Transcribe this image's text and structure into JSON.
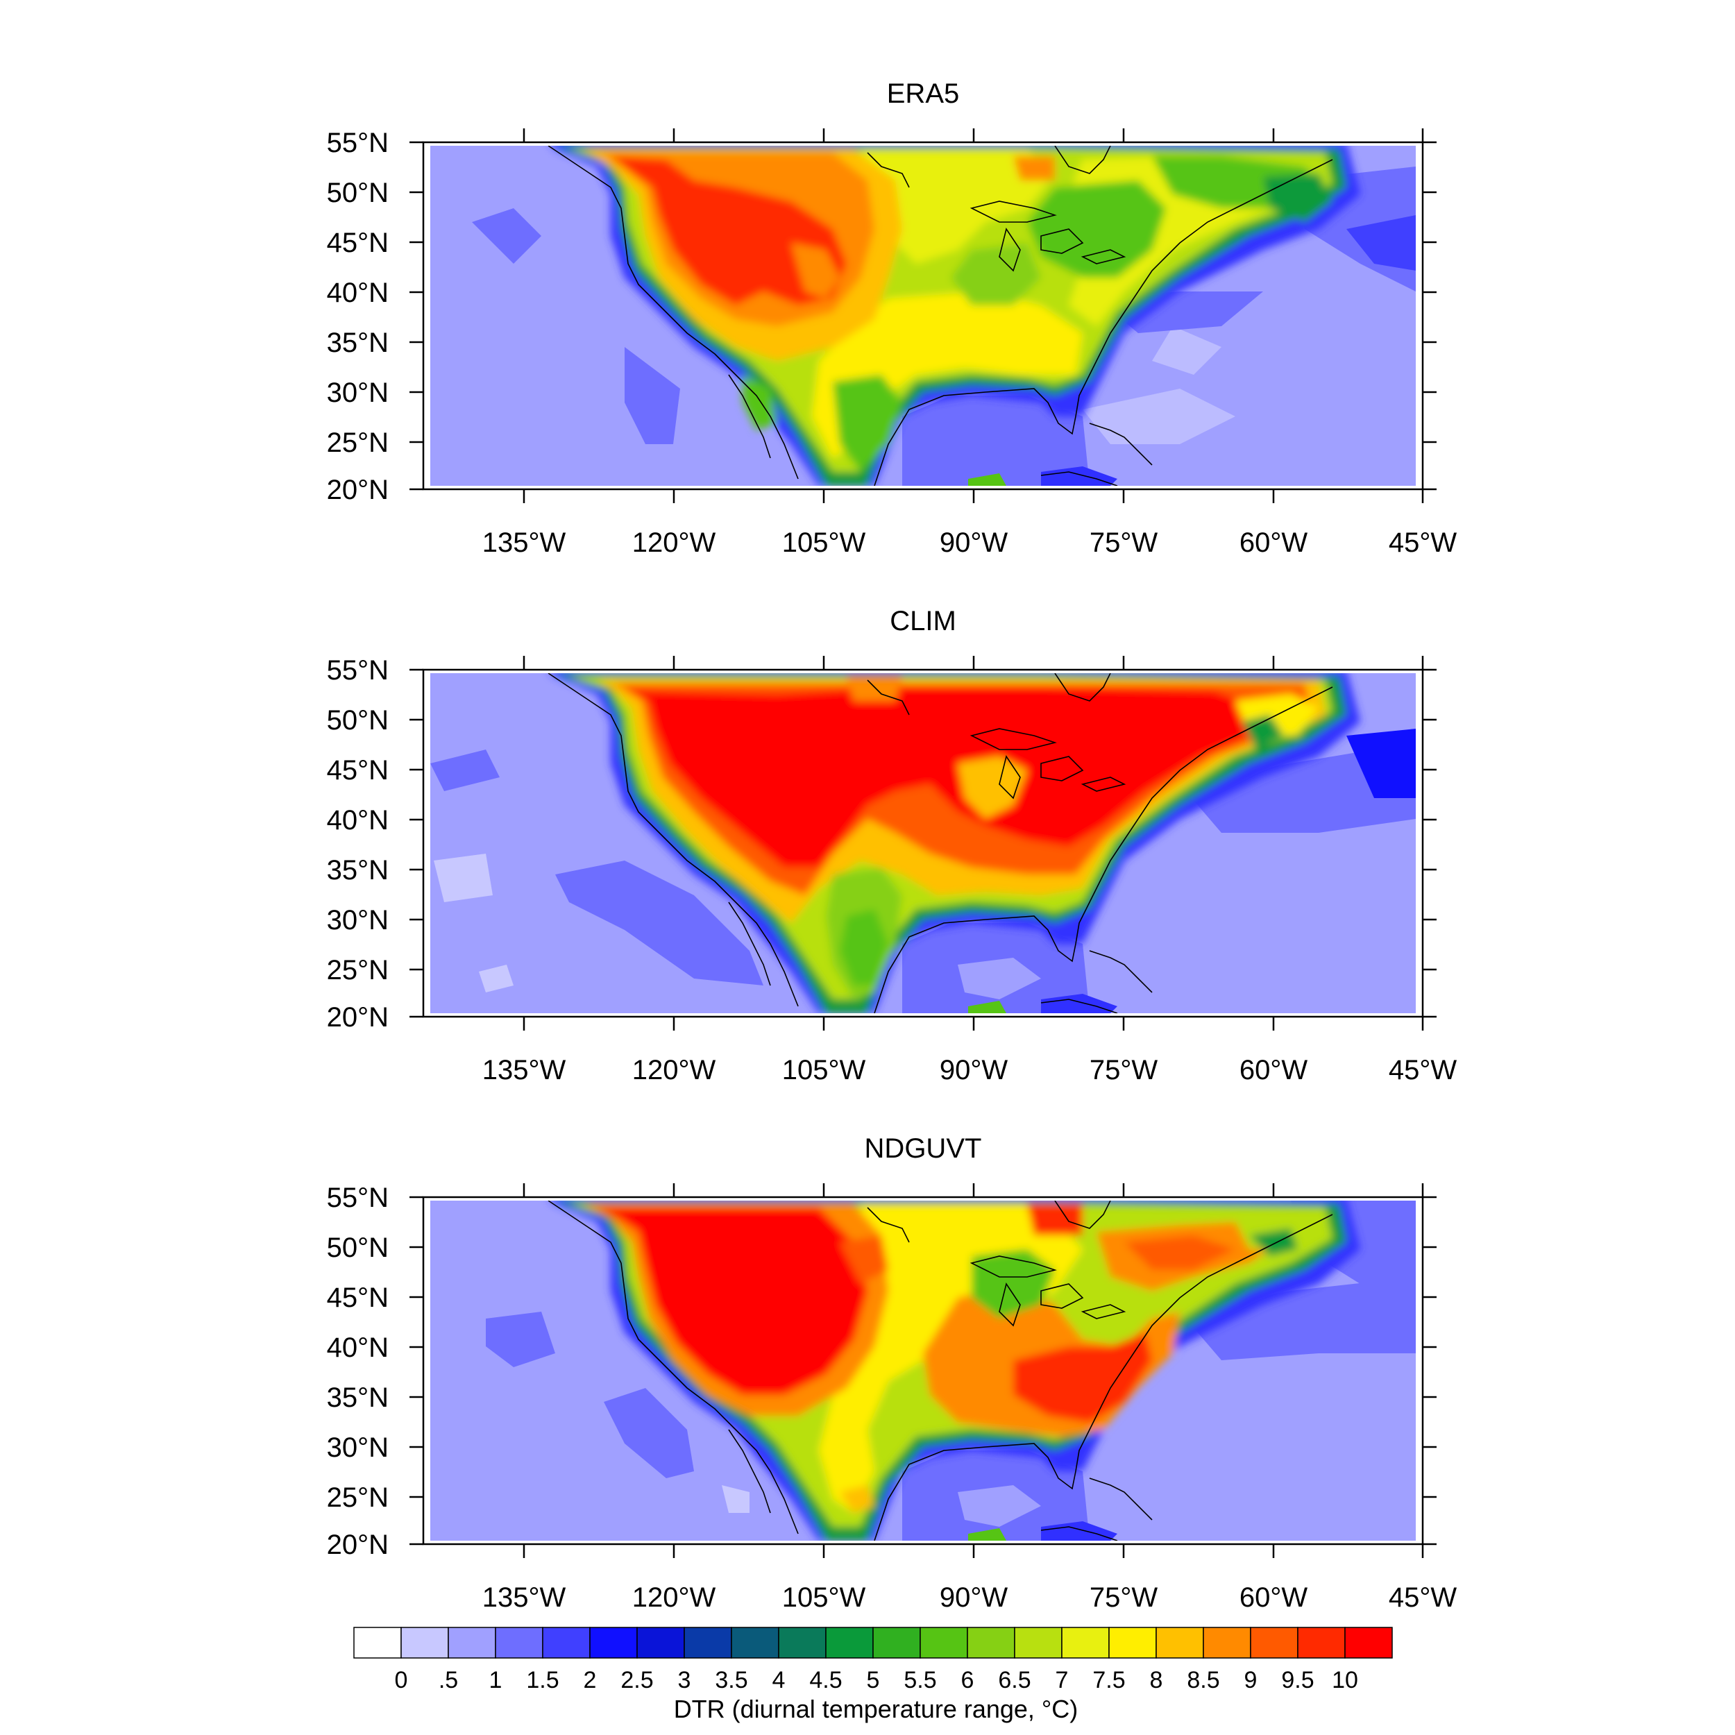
{
  "panels": [
    {
      "id": "era5",
      "title": "ERA5"
    },
    {
      "id": "clim",
      "title": "CLIM"
    },
    {
      "id": "ndguvt",
      "title": "NDGUVT"
    }
  ],
  "axes": {
    "lon_labels": [
      "135°W",
      "120°W",
      "105°W",
      "90°W",
      "75°W",
      "60°W",
      "45°W"
    ],
    "lat_labels": [
      "55°N",
      "50°N",
      "45°N",
      "40°N",
      "35°N",
      "30°N",
      "25°N",
      "20°N"
    ],
    "lon_range_deg": [
      -138.5,
      -44.5
    ],
    "lat_range_deg": [
      20,
      55
    ]
  },
  "colorbar": {
    "label": "DTR (diurnal temperature range, °C)",
    "tick_labels": [
      "0",
      ".5",
      "1",
      "1.5",
      "2",
      "2.5",
      "3",
      "3.5",
      "4",
      "4.5",
      "5",
      "5.5",
      "6",
      "6.5",
      "7",
      "7.5",
      "8",
      "8.5",
      "9",
      "9.5",
      "10"
    ],
    "colors": [
      "#ffffff",
      "#c8c8ff",
      "#a0a0ff",
      "#6e6eff",
      "#4040ff",
      "#1010ff",
      "#0a14d8",
      "#0a3aa8",
      "#0a5a7a",
      "#0a7a5a",
      "#0a9a3a",
      "#30b020",
      "#56c414",
      "#86d014",
      "#b8e010",
      "#e8f010",
      "#ffee00",
      "#ffc000",
      "#ff8a00",
      "#ff5a00",
      "#ff2a00",
      "#ff0000"
    ]
  }
}
